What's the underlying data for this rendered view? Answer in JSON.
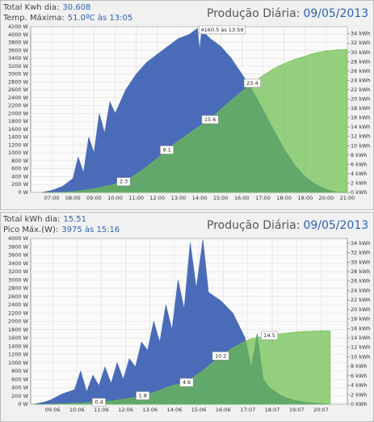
{
  "chart_data": [
    {
      "type": "area",
      "title": "Produção Diária:",
      "date": "09/05/2013",
      "stats": [
        {
          "label": "Total Kwh dia:",
          "value": "30.608"
        },
        {
          "label": "Temp. Máxima:",
          "value": "51.0ºC às 13:05"
        }
      ],
      "x": [
        6.5,
        7,
        7.5,
        8,
        8.25,
        8.5,
        8.75,
        9,
        9.25,
        9.5,
        9.75,
        10,
        10.5,
        11,
        11.5,
        12,
        12.5,
        13,
        13.5,
        13.9,
        14,
        14.1,
        14.5,
        15,
        15.5,
        16,
        16.5,
        17,
        17.5,
        18,
        18.5,
        19,
        19.5,
        20,
        20.5,
        21
      ],
      "series": [
        {
          "color": "#4a6cb8",
          "values": [
            0,
            50,
            150,
            350,
            900,
            500,
            1400,
            1000,
            2000,
            1500,
            2300,
            2000,
            2600,
            3000,
            3300,
            3500,
            3700,
            3900,
            4000,
            4160.5,
            3600,
            4100,
            3900,
            3700,
            3400,
            3000,
            2600,
            2100,
            1600,
            1100,
            700,
            400,
            200,
            80,
            10,
            0
          ]
        },
        {
          "color": "#6cbf4c",
          "axis": "y2",
          "values": [
            0,
            0,
            0.05,
            0.15,
            0.3,
            0.45,
            0.6,
            0.8,
            1.0,
            1.3,
            1.5,
            1.8,
            2.5,
            3.9,
            5.5,
            7.3,
            9.3,
            11.0,
            12.6,
            13.9,
            14.2,
            14.5,
            15.6,
            17.8,
            19.7,
            21.6,
            23.4,
            25.0,
            26.5,
            27.6,
            28.5,
            29.2,
            29.9,
            30.3,
            30.55,
            30.6
          ]
        }
      ],
      "annotations": [
        {
          "x": 10.4,
          "y": 2.3
        },
        {
          "x": 12.45,
          "y": 9.1
        },
        {
          "x": 14.5,
          "y": 15.6
        },
        {
          "x": 16.5,
          "y": 23.4
        }
      ],
      "peak_label": {
        "text": "4160.5 às 13:59",
        "x": 13.98,
        "y": 4160.5
      },
      "xlim": [
        6,
        21
      ],
      "xticks": [
        {
          "value": 7,
          "label": "07:00"
        },
        {
          "value": 8,
          "label": "08:00"
        },
        {
          "value": 9,
          "label": "09:00"
        },
        {
          "value": 10,
          "label": "10:00"
        },
        {
          "value": 11,
          "label": "11:00"
        },
        {
          "value": 12,
          "label": "12:00"
        },
        {
          "value": 13,
          "label": "13:00"
        },
        {
          "value": 14,
          "label": "14:00"
        },
        {
          "value": 15,
          "label": "15:00"
        },
        {
          "value": 16,
          "label": "16:00"
        },
        {
          "value": 17,
          "label": "17:00"
        },
        {
          "value": 18,
          "label": "18:00"
        },
        {
          "value": 19,
          "label": "19:00"
        },
        {
          "value": 20,
          "label": "20:00"
        },
        {
          "value": 21,
          "label": "21:00"
        }
      ],
      "ylim": [
        0,
        4200
      ],
      "yticks": [
        {
          "value": 0,
          "label": "0 W"
        },
        {
          "value": 200,
          "label": "200 W"
        },
        {
          "value": 400,
          "label": "400 W"
        },
        {
          "value": 600,
          "label": "600 W"
        },
        {
          "value": 800,
          "label": "800 W"
        },
        {
          "value": 1000,
          "label": "1000 W"
        },
        {
          "value": 1200,
          "label": "1200 W"
        },
        {
          "value": 1400,
          "label": "1400 W"
        },
        {
          "value": 1600,
          "label": "1600 W"
        },
        {
          "value": 1800,
          "label": "1800 W"
        },
        {
          "value": 2000,
          "label": "2000 W"
        },
        {
          "value": 2200,
          "label": "2200 W"
        },
        {
          "value": 2400,
          "label": "2400 W"
        },
        {
          "value": 2600,
          "label": "2600 W"
        },
        {
          "value": 2800,
          "label": "2800 W"
        },
        {
          "value": 3000,
          "label": "3000 W"
        },
        {
          "value": 3200,
          "label": "3200 W"
        },
        {
          "value": 3400,
          "label": "3400 W"
        },
        {
          "value": 3600,
          "label": "3600 W"
        },
        {
          "value": 3800,
          "label": "3800 W"
        },
        {
          "value": 4000,
          "label": "4000 W"
        },
        {
          "value": 4200,
          "label": "4200 W"
        }
      ],
      "y2lim": [
        0,
        35.5
      ],
      "y2ticks": [
        {
          "value": 0,
          "label": "0 kWh"
        },
        {
          "value": 2,
          "label": "2 kWh"
        },
        {
          "value": 4,
          "label": "4 kWh"
        },
        {
          "value": 6,
          "label": "6 kWh"
        },
        {
          "value": 8,
          "label": "8 kWh"
        },
        {
          "value": 10,
          "label": "10 kWh"
        },
        {
          "value": 12,
          "label": "12 kWh"
        },
        {
          "value": 14,
          "label": "14 kWh"
        },
        {
          "value": 16,
          "label": "16 kWh"
        },
        {
          "value": 18,
          "label": "18 kWh"
        },
        {
          "value": 20,
          "label": "20 kWh"
        },
        {
          "value": 22,
          "label": "22 kWh"
        },
        {
          "value": 24,
          "label": "24 kWh"
        },
        {
          "value": 26,
          "label": "26 kWh"
        },
        {
          "value": 28,
          "label": "28 kWh"
        },
        {
          "value": 30,
          "label": "30 kWh"
        },
        {
          "value": 32,
          "label": "32 kWh"
        },
        {
          "value": 34,
          "label": "34 kWh"
        }
      ],
      "grid": true
    },
    {
      "type": "area",
      "title": "Produção Diária:",
      "date": "09/05/2013",
      "stats": [
        {
          "label": "Total kWh dia:",
          "value": "15.51"
        },
        {
          "label": "Pico Máx.(W):",
          "value": "3975 às 15:16"
        }
      ],
      "x": [
        8.3,
        8.75,
        9,
        9.5,
        10,
        10.25,
        10.5,
        10.75,
        11,
        11.25,
        11.5,
        11.75,
        12,
        12.25,
        12.5,
        12.75,
        13,
        13.25,
        13.5,
        13.75,
        14,
        14.25,
        14.5,
        14.75,
        15,
        15.27,
        15.5,
        16,
        16.5,
        17,
        17.25,
        17.5,
        17.75,
        18,
        18.5,
        19,
        19.5,
        20,
        20.5
      ],
      "series": [
        {
          "color": "#4a6cb8",
          "values": [
            0,
            50,
            100,
            250,
            350,
            800,
            300,
            700,
            450,
            900,
            500,
            1000,
            600,
            1100,
            900,
            1500,
            1300,
            2000,
            1500,
            2400,
            1800,
            3000,
            2300,
            3900,
            2800,
            3975,
            2700,
            2500,
            2200,
            1600,
            900,
            1700,
            600,
            400,
            200,
            100,
            50,
            20,
            0
          ]
        },
        {
          "color": "#6cbf4c",
          "axis": "y2",
          "values": [
            0,
            0,
            0.02,
            0.08,
            0.18,
            0.24,
            0.3,
            0.35,
            0.4,
            0.55,
            0.7,
            0.85,
            1.05,
            1.25,
            1.45,
            1.75,
            2.1,
            2.5,
            2.95,
            3.45,
            3.9,
            4.2,
            4.45,
            5.3,
            6.1,
            7.1,
            8.1,
            10.2,
            11.9,
            13.3,
            13.8,
            14.1,
            14.3,
            14.5,
            14.9,
            15.2,
            15.4,
            15.48,
            15.51
          ]
        }
      ],
      "annotations": [
        {
          "x": 11.0,
          "y": 0.4
        },
        {
          "x": 12.8,
          "y": 1.8
        },
        {
          "x": 14.6,
          "y": 4.6
        },
        {
          "x": 16.0,
          "y": 10.2
        },
        {
          "x": 18.0,
          "y": 14.5
        }
      ],
      "xlim": [
        8.2,
        21.2
      ],
      "xticks": [
        {
          "value": 9.1,
          "label": "09:06"
        },
        {
          "value": 10.1,
          "label": "10:06"
        },
        {
          "value": 11.1,
          "label": "11:06"
        },
        {
          "value": 12.1,
          "label": "12:06"
        },
        {
          "value": 13.1,
          "label": "13:06"
        },
        {
          "value": 14.1,
          "label": "14:06"
        },
        {
          "value": 15.1,
          "label": "15:06"
        },
        {
          "value": 16.1,
          "label": "16:06"
        },
        {
          "value": 17.117,
          "label": "17:07"
        },
        {
          "value": 18.117,
          "label": "18:07"
        },
        {
          "value": 19.117,
          "label": "19:07"
        },
        {
          "value": 20.117,
          "label": "20:07"
        }
      ],
      "ylim": [
        0,
        4000
      ],
      "yticks": [
        {
          "value": 0,
          "label": "0 W"
        },
        {
          "value": 200,
          "label": "200 W"
        },
        {
          "value": 400,
          "label": "400 W"
        },
        {
          "value": 600,
          "label": "600 W"
        },
        {
          "value": 800,
          "label": "800 W"
        },
        {
          "value": 1000,
          "label": "1000 W"
        },
        {
          "value": 1200,
          "label": "1200 W"
        },
        {
          "value": 1400,
          "label": "1400 W"
        },
        {
          "value": 1600,
          "label": "1600 W"
        },
        {
          "value": 1800,
          "label": "1800 W"
        },
        {
          "value": 2000,
          "label": "2000 W"
        },
        {
          "value": 2200,
          "label": "2200 W"
        },
        {
          "value": 2400,
          "label": "2400 W"
        },
        {
          "value": 2600,
          "label": "2600 W"
        },
        {
          "value": 2800,
          "label": "2800 W"
        },
        {
          "value": 3000,
          "label": "3000 W"
        },
        {
          "value": 3200,
          "label": "3200 W"
        },
        {
          "value": 3400,
          "label": "3400 W"
        },
        {
          "value": 3600,
          "label": "3600 W"
        },
        {
          "value": 3800,
          "label": "3800 W"
        },
        {
          "value": 4000,
          "label": "4000 W"
        }
      ],
      "y2lim": [
        0,
        35
      ],
      "y2ticks": [
        {
          "value": 0,
          "label": "0 kWh"
        },
        {
          "value": 2,
          "label": "2 kWh"
        },
        {
          "value": 4,
          "label": "4 kWh"
        },
        {
          "value": 6,
          "label": "6 kWh"
        },
        {
          "value": 8,
          "label": "8 kWh"
        },
        {
          "value": 10,
          "label": "10 kWh"
        },
        {
          "value": 12,
          "label": "12 kWh"
        },
        {
          "value": 14,
          "label": "14 kWh"
        },
        {
          "value": 16,
          "label": "16 kWh"
        },
        {
          "value": 18,
          "label": "18 kWh"
        },
        {
          "value": 20,
          "label": "20 kWh"
        },
        {
          "value": 22,
          "label": "22 kWh"
        },
        {
          "value": 24,
          "label": "24 kWh"
        },
        {
          "value": 26,
          "label": "26 kWh"
        },
        {
          "value": 28,
          "label": "28 kWh"
        },
        {
          "value": 30,
          "label": "30 kWh"
        },
        {
          "value": 32,
          "label": "32 kWh"
        },
        {
          "value": 34,
          "label": "34 kWh"
        }
      ],
      "grid": true
    }
  ]
}
